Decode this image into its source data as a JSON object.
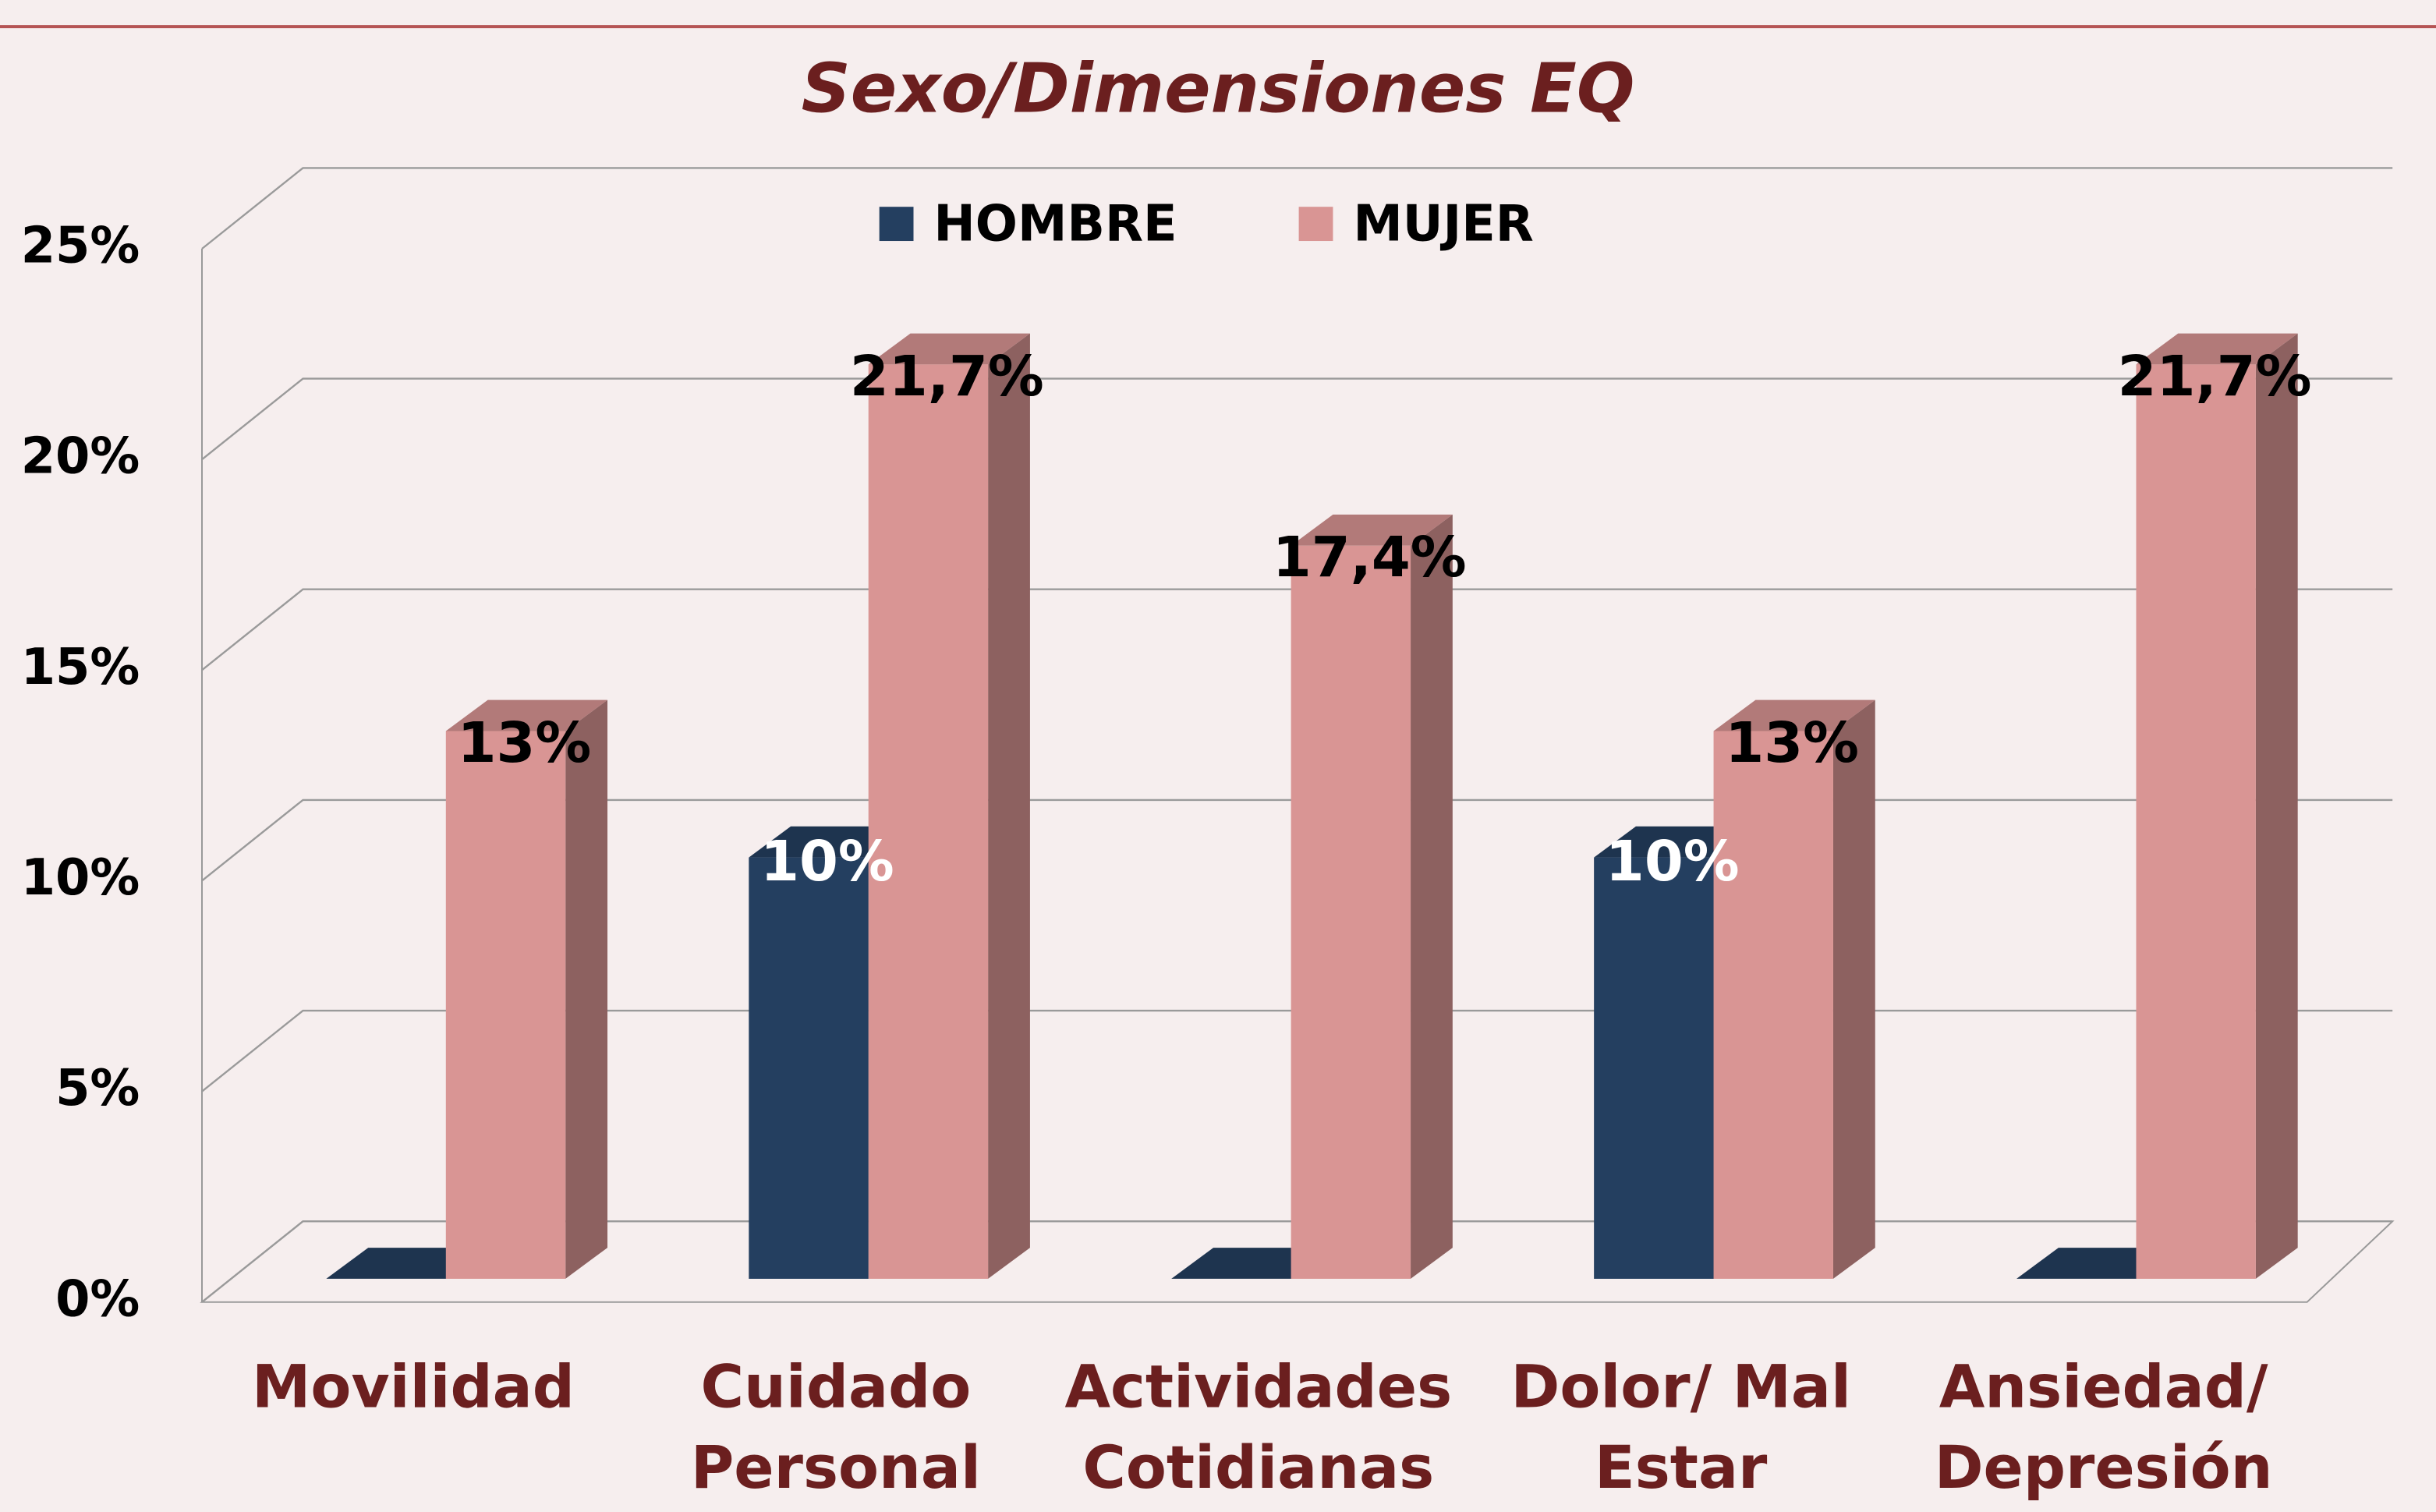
{
  "chart_data": {
    "type": "bar3d",
    "title": "Sexo/Dimensiones EQ",
    "categories": [
      [
        "Movilidad"
      ],
      [
        "Cuidado",
        "Personal"
      ],
      [
        "Actividades",
        "Cotidianas"
      ],
      [
        "Dolor/ Mal",
        "Estar"
      ],
      [
        "Ansiedad/",
        "Depresión"
      ]
    ],
    "series": [
      {
        "name": "HOMBRE",
        "color": "#243f60",
        "values": [
          0,
          10,
          0,
          10,
          0
        ],
        "value_labels": [
          null,
          "10%",
          null,
          "10%",
          null
        ]
      },
      {
        "name": "MUJER",
        "color": "#d99594",
        "values": [
          13,
          21.7,
          17.4,
          13,
          21.7
        ],
        "value_labels": [
          "13%",
          "21,7%",
          "17,4%",
          "13%",
          "21,7%"
        ]
      }
    ],
    "ylim": [
      0,
      25
    ],
    "yticks": [
      {
        "value": 0,
        "label": "0%"
      },
      {
        "value": 5,
        "label": "5%"
      },
      {
        "value": 10,
        "label": "10%"
      },
      {
        "value": 15,
        "label": "15%"
      },
      {
        "value": 20,
        "label": "20%"
      },
      {
        "value": 25,
        "label": "25%"
      }
    ],
    "grid": true,
    "legend": "top"
  }
}
